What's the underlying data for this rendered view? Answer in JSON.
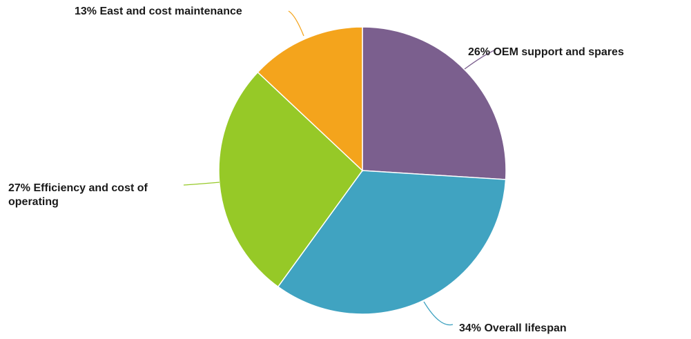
{
  "chart_data": {
    "type": "pie",
    "title": "",
    "slices": [
      {
        "label": "OEM support and spares",
        "pct_text": "26%",
        "value": 26,
        "color": "#7b5f8e"
      },
      {
        "label": "Overall lifespan",
        "pct_text": "34%",
        "value": 34,
        "color": "#40a3c1"
      },
      {
        "label": "Efficiency and cost of operating",
        "pct_text": "27%",
        "value": 27,
        "color": "#96c927"
      },
      {
        "label": "East and cost maintenance",
        "pct_text": "13%",
        "value": 13,
        "color": "#f4a41c"
      }
    ],
    "legend": "none"
  }
}
